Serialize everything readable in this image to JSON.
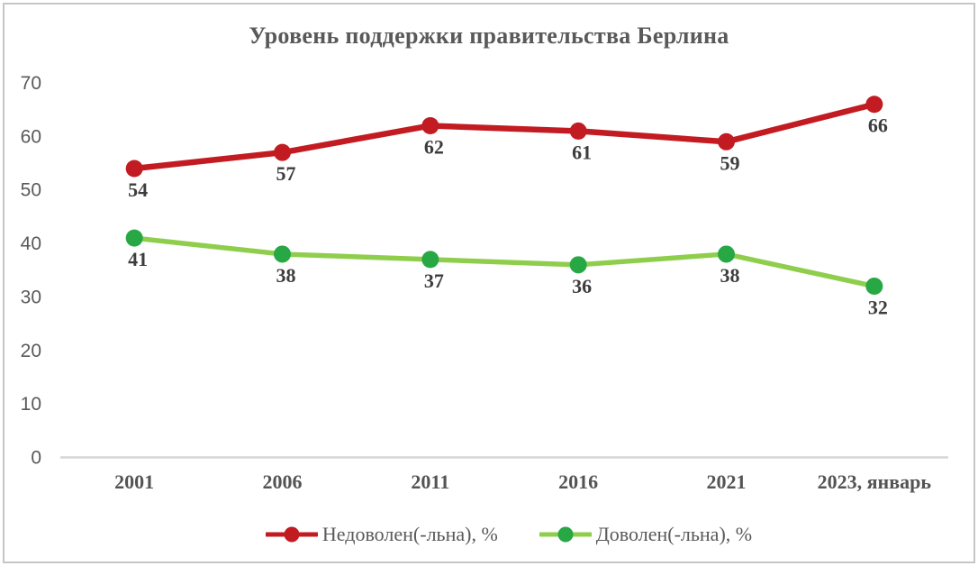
{
  "chart_data": {
    "type": "line",
    "title": "Уровень поддержки правительства Берлина",
    "categories": [
      "2001",
      "2006",
      "2011",
      "2016",
      "2021",
      "2023, январь"
    ],
    "series": [
      {
        "name": "Недоволен(-льна), %",
        "values": [
          54,
          57,
          62,
          61,
          59,
          66
        ],
        "line_color": "#c21b21",
        "marker_color": "#c21b21"
      },
      {
        "name": "Доволен(-льна), %",
        "values": [
          41,
          38,
          37,
          36,
          38,
          32
        ],
        "line_color": "#8fce4c",
        "marker_color": "#27a844"
      }
    ],
    "xlabel": "",
    "ylabel": "",
    "ylim": [
      0,
      70
    ],
    "yticks": [
      0,
      10,
      20,
      30,
      40,
      50,
      60,
      70
    ],
    "grid": "off",
    "legend_position": "bottom",
    "axis_line_color": "#d6d6d6",
    "data_labels": "below-markers"
  }
}
